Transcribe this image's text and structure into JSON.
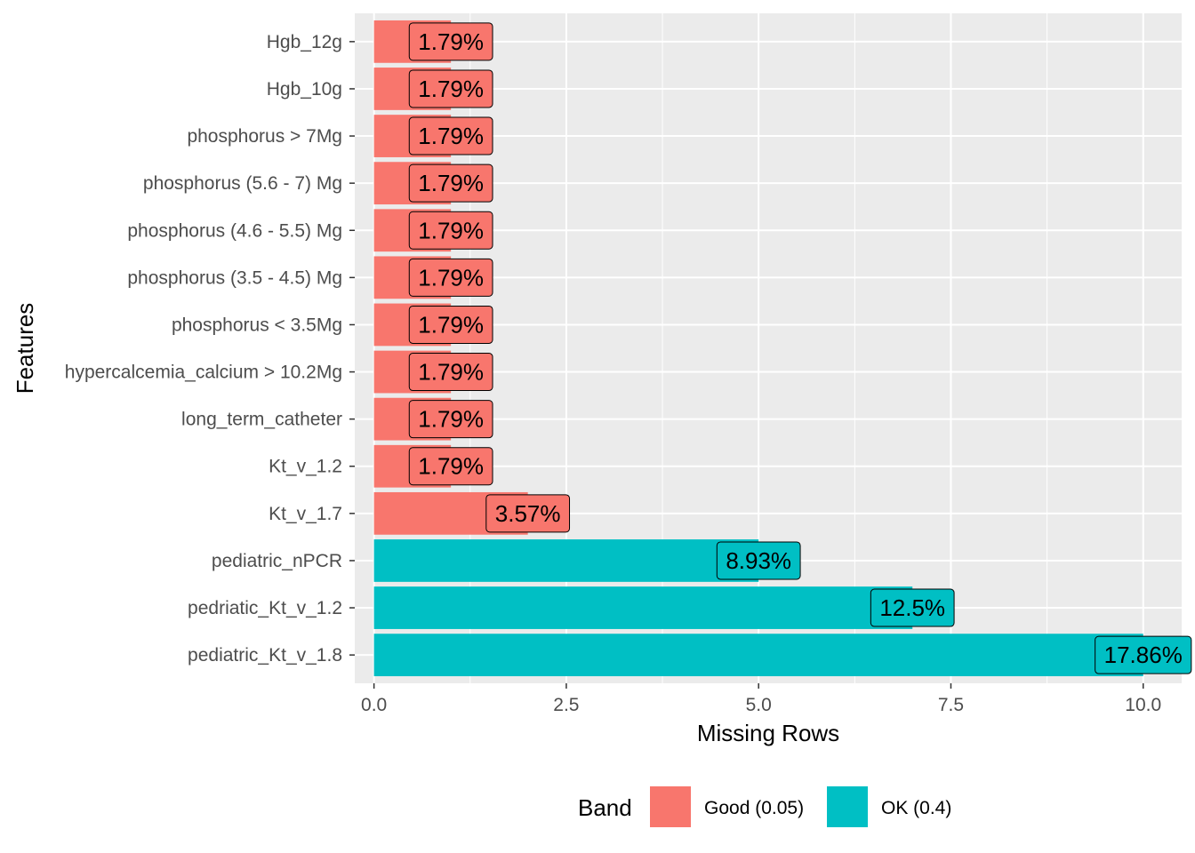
{
  "chart_data": {
    "type": "bar",
    "orientation": "horizontal",
    "xlabel": "Missing Rows",
    "ylabel": "Features",
    "xlim": [
      -0.25,
      10.5
    ],
    "xticks": [
      0.0,
      2.5,
      5.0,
      7.5,
      10.0
    ],
    "xtick_labels": [
      "0.0",
      "2.5",
      "5.0",
      "7.5",
      "10.0"
    ],
    "grid": true,
    "legend": {
      "title": "Band",
      "position": "bottom",
      "items": [
        {
          "label": "Good (0.05)",
          "color": "#F8766D"
        },
        {
          "label": "OK (0.4)",
          "color": "#00BFC4"
        }
      ]
    },
    "categories": [
      "Hgb_12g",
      "Hgb_10g",
      "phosphorus > 7Mg",
      "phosphorus (5.6 - 7) Mg",
      "phosphorus (4.6 - 5.5) Mg",
      "phosphorus (3.5 - 4.5) Mg",
      "phosphorus < 3.5Mg",
      "hypercalcemia_calcium > 10.2Mg",
      "long_term_catheter",
      "Kt_v_1.2",
      "Kt_v_1.7",
      "pediatric_nPCR",
      "pedriatic_Kt_v_1.2",
      "pediatric_Kt_v_1.8"
    ],
    "values": [
      1,
      1,
      1,
      1,
      1,
      1,
      1,
      1,
      1,
      1,
      2,
      5,
      7,
      10
    ],
    "labels": [
      "1.79%",
      "1.79%",
      "1.79%",
      "1.79%",
      "1.79%",
      "1.79%",
      "1.79%",
      "1.79%",
      "1.79%",
      "1.79%",
      "3.57%",
      "8.93%",
      "12.5%",
      "17.86%"
    ],
    "bands": [
      "Good (0.05)",
      "Good (0.05)",
      "Good (0.05)",
      "Good (0.05)",
      "Good (0.05)",
      "Good (0.05)",
      "Good (0.05)",
      "Good (0.05)",
      "Good (0.05)",
      "Good (0.05)",
      "Good (0.05)",
      "OK (0.4)",
      "OK (0.4)",
      "OK (0.4)"
    ]
  }
}
